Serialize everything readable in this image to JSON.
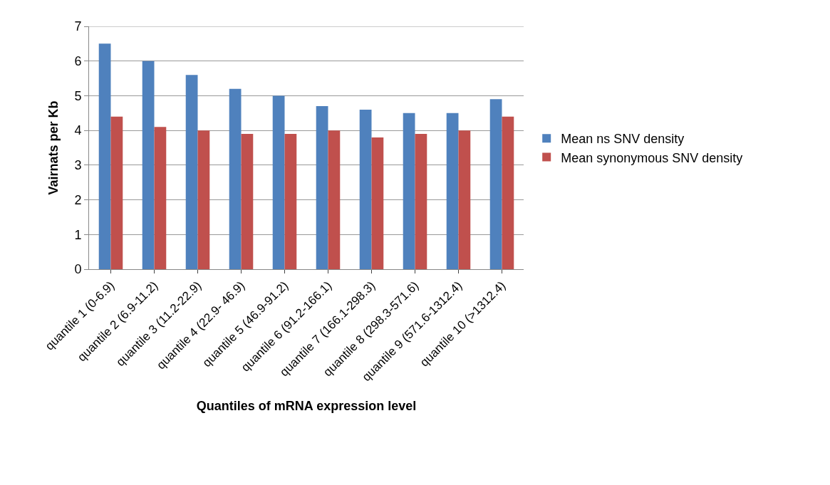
{
  "chart_data": {
    "type": "bar",
    "xlabel": "Quantiles of mRNA expression level",
    "ylabel": "Vairnats per Kb",
    "categories": [
      "quantile 1 (0-6.9)",
      "quantile 2 (6.9-11.2)",
      "quantile 3 (11.2-22.9)",
      "quantile 4 (22.9- 46.9)",
      "quantile 5 (46.9-91.2)",
      "quantile 6 (91.2-166.1)",
      "quantile 7 (166.1-298.3)",
      "quantile 8 (298.3-571.6)",
      "quantile 9 (571.6-1312.4)",
      "quantile 10 (>1312.4)"
    ],
    "series": [
      {
        "name": "Mean ns SNV density",
        "color": "#4f81bd",
        "values": [
          6.5,
          6.0,
          5.6,
          5.2,
          5.0,
          4.7,
          4.6,
          4.5,
          4.5,
          4.9
        ]
      },
      {
        "name": "Mean synonymous SNV density",
        "color": "#c0504d",
        "values": [
          4.4,
          4.1,
          4.0,
          3.9,
          3.9,
          4.0,
          3.8,
          3.9,
          4.0,
          4.4
        ]
      }
    ],
    "ylim": [
      0,
      7
    ],
    "yticks": [
      0,
      1,
      2,
      3,
      4,
      5,
      6,
      7
    ],
    "grid": "y",
    "legend": "right"
  }
}
